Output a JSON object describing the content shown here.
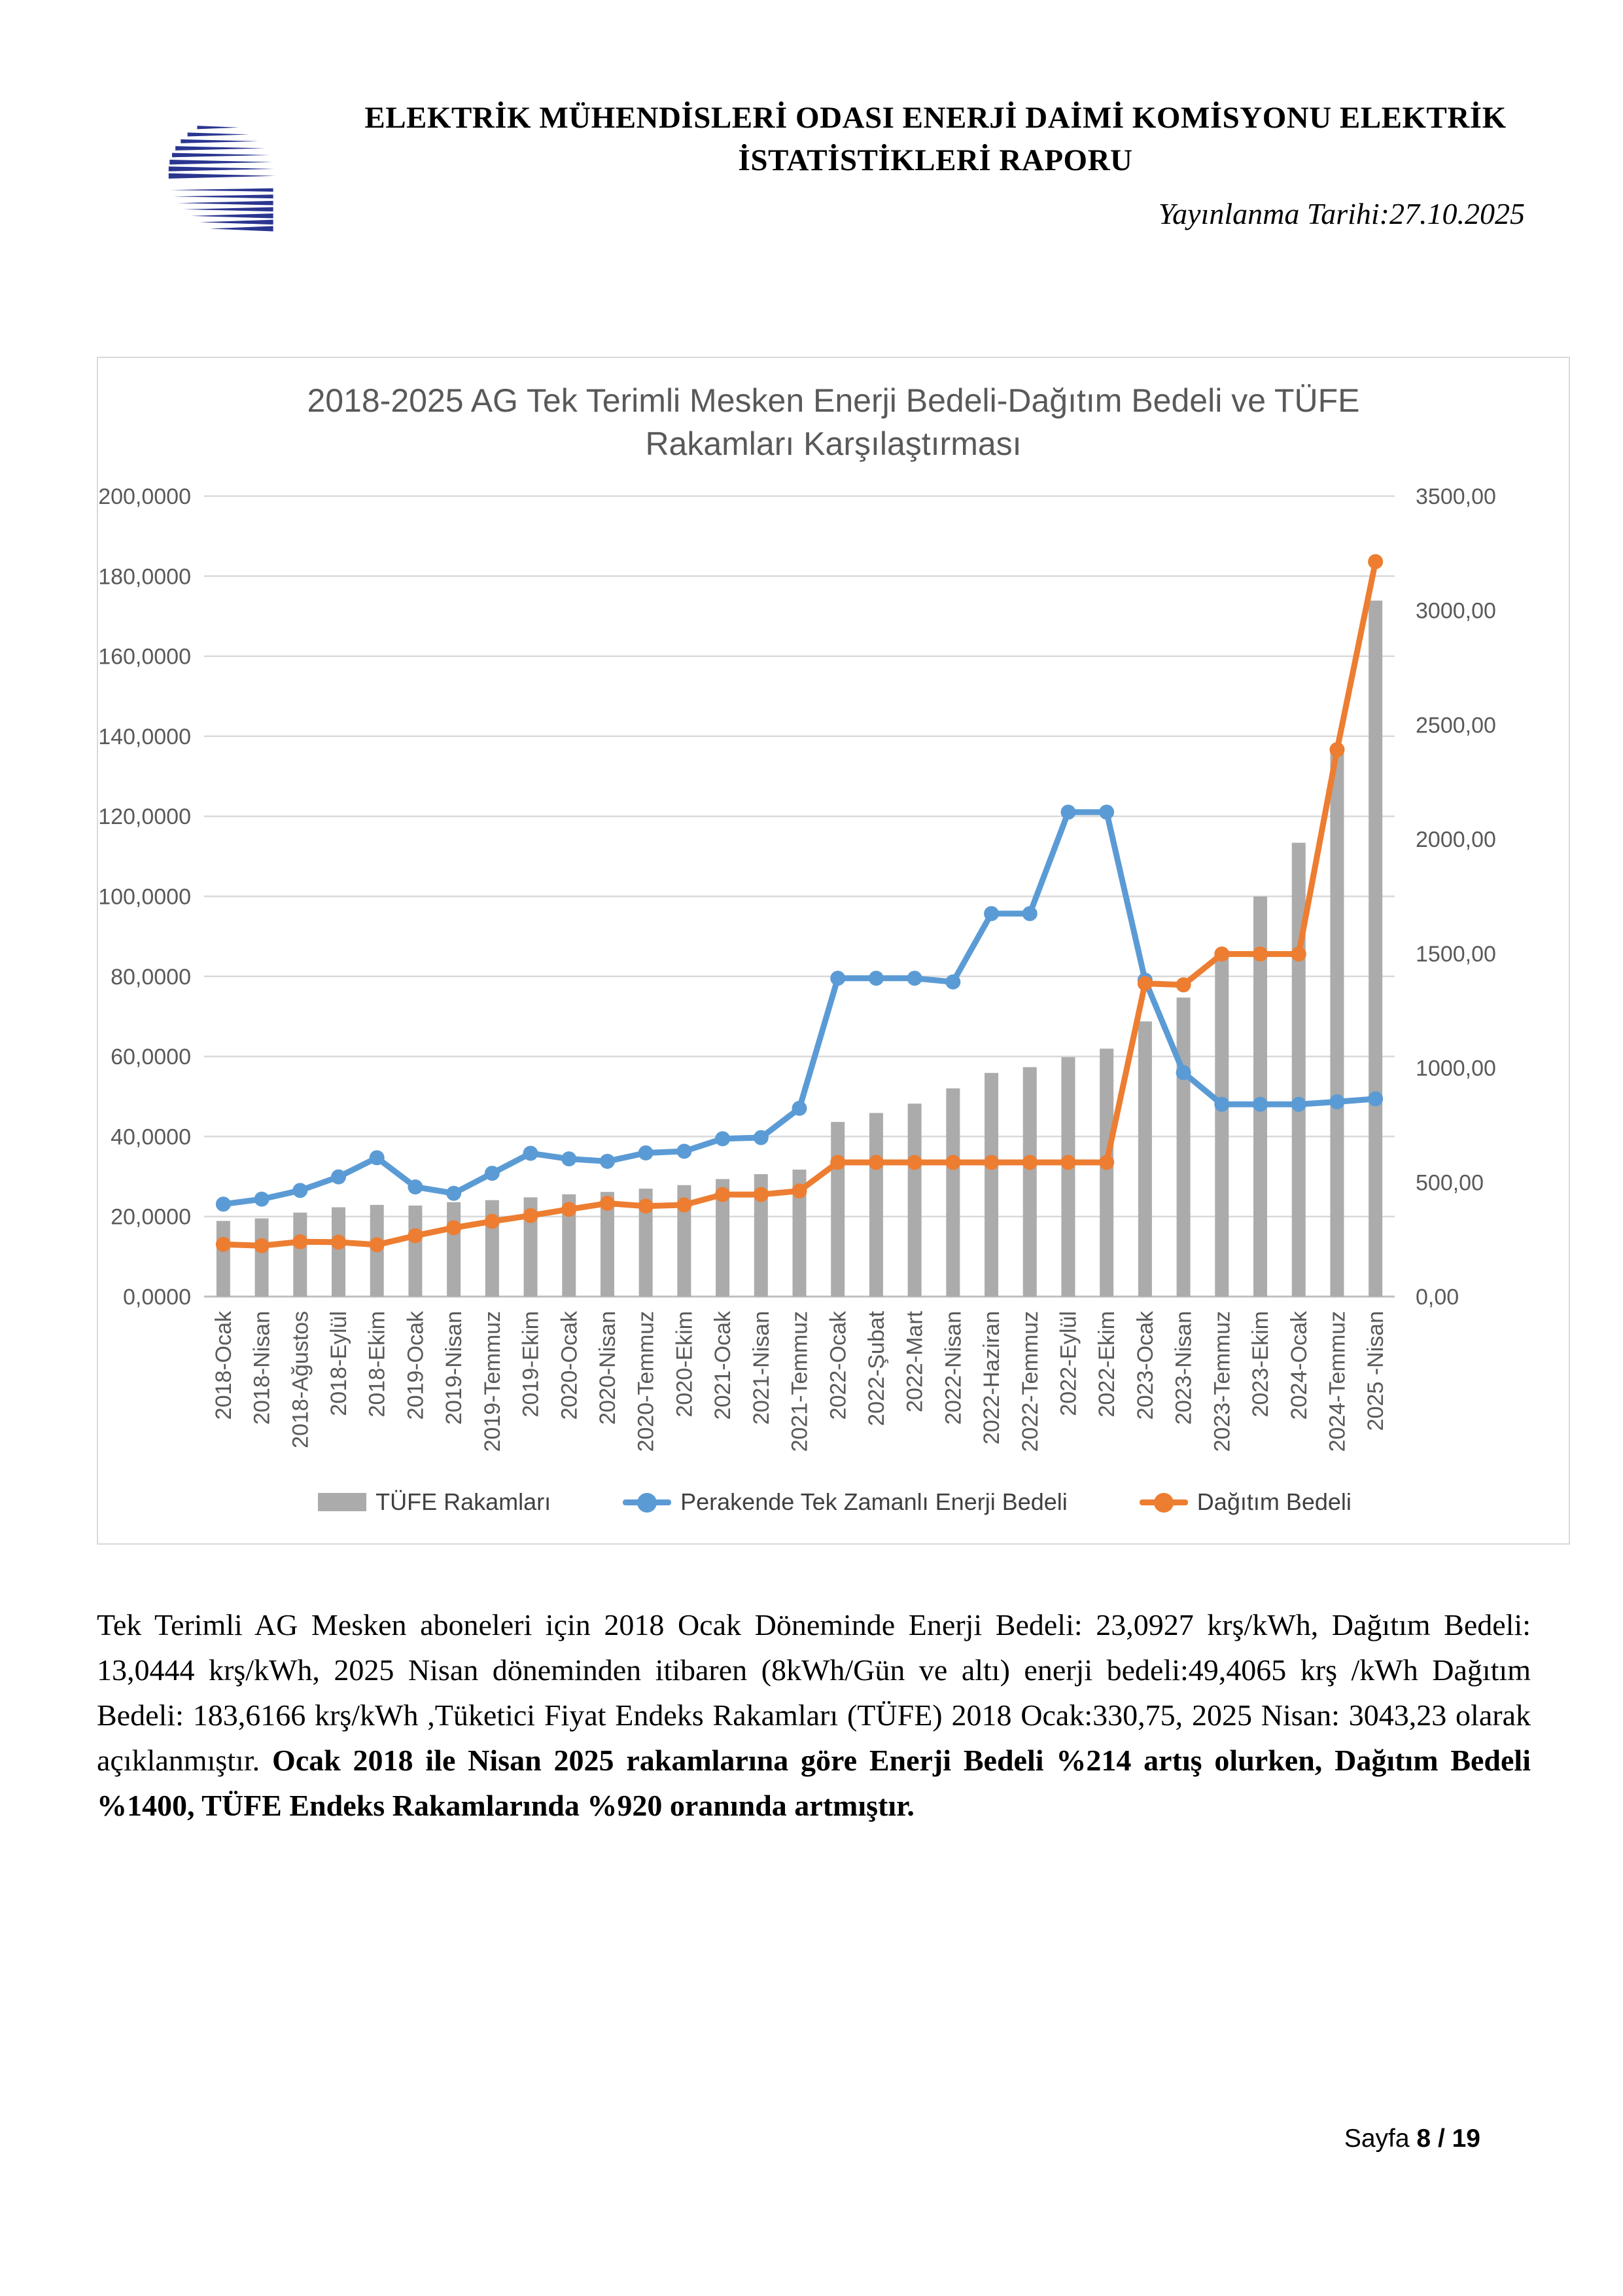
{
  "header": {
    "title_line1": "ELEKTRİK MÜHENDİSLERİ ODASI ENERJİ DAİMİ KOMİSYONU ELEKTRİK",
    "title_line2": "İSTATİSTİKLERİ RAPORU",
    "publish_date": "Yayınlanma Tarihi:27.10.2025",
    "logo_color": "#2b3690"
  },
  "chart_data": {
    "type": "bar",
    "title_line1": "2018-2025  AG Tek Terimli Mesken Enerji Bedeli-Dağıtım Bedeli ve TÜFE",
    "title_line2": "Rakamları Karşılaştırması",
    "categories": [
      "2018-Ocak",
      "2018-Nisan",
      "2018-Ağustos",
      "2018-Eylül",
      "2018-Ekim",
      "2019-Ocak",
      "2019-Nisan",
      "2019-Temmuz",
      "2019-Ekim",
      "2020-Ocak",
      "2020-Nisan",
      "2020-Temmuz",
      "2020-Ekim",
      "2021-Ocak",
      "2021-Nisan",
      "2021-Temmuz",
      "2022-Ocak",
      "2022-Şubat",
      "2022-Mart",
      "2022-Nisan",
      "2022-Haziran",
      "2022-Temmuz",
      "2022-Eylül",
      "2022-Ekim",
      "2023-Ocak",
      "2023-Nisan",
      "2023-Temmuz",
      "2023-Ekim",
      "2024-Ocak",
      "2024-Temmuz",
      "2025 -Nisan"
    ],
    "bar_series": {
      "name": "TÜFE Rakamları",
      "axis": "right",
      "color": "#ababab",
      "values": [
        330.75,
        341.88,
        367.3,
        390.44,
        400.87,
        398.01,
        412.75,
        421.59,
        433.93,
        447.13,
        457.6,
        471.86,
        487.38,
        513.91,
        535.21,
        555.18,
        763.56,
        802.7,
        843.64,
        910.45,
        977.9,
        1003.21,
        1046.89,
        1084.03,
        1203.24,
        1307.39,
        1483.17,
        1749.47,
        1984.29,
        2393.13,
        3043.23
      ]
    },
    "line_series": [
      {
        "name": "Perakende Tek Zamanlı Enerji Bedeli",
        "axis": "left",
        "color": "#5b9bd5",
        "values": [
          23.09,
          24.34,
          26.52,
          29.9,
          34.68,
          27.4,
          25.8,
          30.8,
          35.8,
          34.4,
          33.8,
          35.9,
          36.3,
          39.44,
          39.72,
          47.03,
          79.53,
          79.53,
          79.53,
          78.61,
          95.68,
          95.68,
          121.03,
          121.03,
          79.06,
          55.97,
          48.04,
          48.04,
          48.04,
          48.67,
          49.41
        ]
      },
      {
        "name": "Dağıtım Bedeli",
        "axis": "left",
        "color": "#ed7d31",
        "values": [
          13.04,
          12.72,
          13.7,
          13.6,
          12.94,
          15.21,
          17.2,
          18.8,
          20.24,
          21.8,
          23.3,
          22.6,
          22.9,
          25.5,
          25.5,
          26.4,
          33.53,
          33.53,
          33.53,
          33.53,
          33.53,
          33.53,
          33.53,
          33.53,
          78.23,
          77.89,
          85.58,
          85.58,
          85.58,
          136.66,
          183.62
        ]
      }
    ],
    "left_axis": {
      "min": 0,
      "max": 200,
      "step": 20,
      "tick_labels": [
        "0,0000",
        "20,0000",
        "40,0000",
        "60,0000",
        "80,0000",
        "100,0000",
        "120,0000",
        "140,0000",
        "160,0000",
        "180,0000",
        "200,0000"
      ]
    },
    "right_axis": {
      "min": 0,
      "max": 3500,
      "step": 500,
      "tick_labels": [
        "0,00",
        "500,00",
        "1000,00",
        "1500,00",
        "2000,00",
        "2500,00",
        "3000,00",
        "3500,00"
      ]
    },
    "grid": true,
    "legend_position": "bottom",
    "colors": {
      "gridline": "#d9d9d9",
      "axis_line": "#bfbfbf",
      "tick_text": "#595959"
    }
  },
  "body": {
    "paragraph_normal": "Tek Terimli AG Mesken aboneleri için 2018 Ocak Döneminde Enerji Bedeli: 23,0927 krş/kWh, Dağıtım Bedeli: 13,0444 krş/kWh, 2025 Nisan döneminden itibaren (8kWh/Gün ve altı) enerji bedeli:49,4065 krş /kWh Dağıtım Bedeli: 183,6166 krş/kWh ,Tüketici Fiyat Endeks Rakamları (TÜFE) 2018 Ocak:330,75, 2025 Nisan: 3043,23 olarak açıklanmıştır. ",
    "paragraph_bold": "Ocak 2018 ile Nisan 2025 rakamlarına göre Enerji Bedeli %214 artış olurken, Dağıtım Bedeli %1400, TÜFE Endeks Rakamlarında %920 oranında artmıştır."
  },
  "footer": {
    "page_label": "Sayfa",
    "page_value": "8 / 19"
  }
}
